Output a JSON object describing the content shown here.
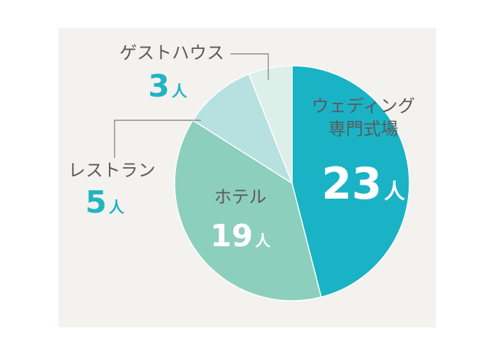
{
  "chart_data": {
    "type": "pie",
    "unit": "人",
    "slices": [
      {
        "label_lines": [
          "ウェディング",
          "専門式場"
        ],
        "value": 23,
        "color": "#1ab3c6"
      },
      {
        "label_lines": [
          "ホテル"
        ],
        "value": 19,
        "color": "#8ccfbc"
      },
      {
        "label_lines": [
          "レストラン"
        ],
        "value": 5,
        "color": "#b7e1e1"
      },
      {
        "label_lines": [
          "ゲストハウス"
        ],
        "value": 3,
        "color": "#dcefe8"
      }
    ]
  }
}
